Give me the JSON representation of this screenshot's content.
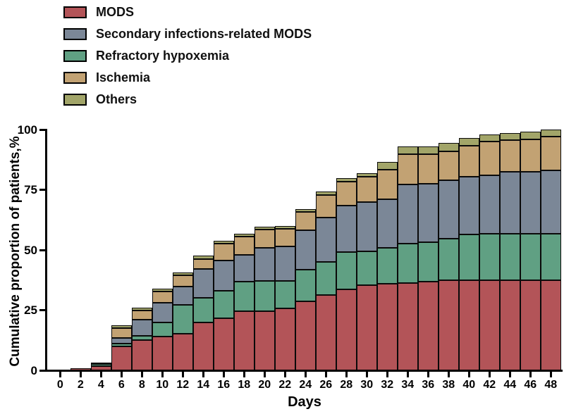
{
  "figure": {
    "y_axis_title": "Cumulative proportion of patients,%",
    "x_axis_title": "Days",
    "background_color": "#ffffff",
    "axis_color": "#000000",
    "bar_outline_color": "#0a0a0a"
  },
  "legend": {
    "items": [
      {
        "key": "mods",
        "label": "MODS",
        "color": "#b35458"
      },
      {
        "key": "secondary-infections-mods",
        "label": "Secondary infections-related MODS",
        "color": "#7b8797"
      },
      {
        "key": "refractory-hypoxemia",
        "label": "Refractory hypoxemia",
        "color": "#60a083"
      },
      {
        "key": "ischemia",
        "label": "Ischemia",
        "color": "#c2a273"
      },
      {
        "key": "others",
        "label": "Others",
        "color": "#a2a569"
      }
    ]
  },
  "chart_data": {
    "type": "bar",
    "subtype": "stacked_bar_cumulative_incidence",
    "title": "",
    "xlabel": "Days",
    "ylabel": "Cumulative proportion of patients,%",
    "ylim": [
      0,
      100
    ],
    "xlim_days": [
      0,
      48
    ],
    "grid": false,
    "legend_position": "top-left",
    "y_ticks": [
      0,
      25,
      50,
      75,
      100
    ],
    "x_tick_labels": [
      "0",
      "2",
      "4",
      "6",
      "8",
      "10",
      "12",
      "14",
      "16",
      "18",
      "20",
      "22",
      "24",
      "26",
      "28",
      "30",
      "32",
      "34",
      "36",
      "38",
      "40",
      "42",
      "44",
      "46",
      "48"
    ],
    "categories": [
      0,
      2,
      4,
      6,
      8,
      10,
      12,
      14,
      16,
      18,
      20,
      22,
      24,
      26,
      28,
      30,
      32,
      34,
      36,
      38,
      40,
      42,
      44,
      46,
      48
    ],
    "stack_order_bottom_to_top": [
      "MODS",
      "Refractory hypoxemia",
      "Secondary infections-related MODS",
      "Ischemia",
      "Others"
    ],
    "legend_order": [
      "MODS",
      "Secondary infections-related MODS",
      "Refractory hypoxemia",
      "Ischemia",
      "Others"
    ],
    "units": "percent of patients",
    "series": [
      {
        "name": "MODS",
        "key": "mods",
        "color": "#b35458",
        "values": [
          0,
          1,
          1.7,
          10,
          12.5,
          14,
          15.2,
          19.8,
          21.7,
          24.6,
          24.6,
          25.6,
          28.6,
          31.2,
          33.5,
          35.4,
          36.1,
          36.3,
          36.9,
          37.3,
          37.3,
          37.3,
          37.3,
          37.3,
          37.3
        ]
      },
      {
        "name": "Refractory hypoxemia",
        "key": "refractory-hypoxemia",
        "color": "#60a083",
        "values": [
          0,
          0,
          0.9,
          1.2,
          1.9,
          6,
          12.1,
          10.2,
          11.3,
          12.2,
          12.4,
          11.4,
          13.1,
          13.9,
          15.5,
          14.1,
          14.9,
          16.4,
          16.3,
          17.4,
          19.2,
          19.4,
          19.5,
          19.5,
          19.5
        ]
      },
      {
        "name": "Secondary infections-related MODS",
        "key": "secondary-infections-mods",
        "color": "#7b8797",
        "values": [
          0,
          0,
          0.4,
          2.2,
          6.8,
          8,
          7.4,
          12.2,
          12.6,
          11.3,
          14,
          14.5,
          16.6,
          18.5,
          19.3,
          20.3,
          20.1,
          24.4,
          24.3,
          24.3,
          23.9,
          24.3,
          25.7,
          25.7,
          26.2
        ]
      },
      {
        "name": "Ischemia",
        "key": "ischemia",
        "color": "#c2a273",
        "values": [
          0,
          0,
          0,
          4.2,
          3.8,
          4.7,
          4.9,
          4.1,
          7,
          7.5,
          7.5,
          7.2,
          7.5,
          9.1,
          10.2,
          10.7,
          12.2,
          12.6,
          12.2,
          12,
          12.8,
          14,
          13,
          13.5,
          14
        ]
      },
      {
        "name": "Others",
        "key": "others",
        "color": "#a2a569",
        "values": [
          0,
          0,
          0,
          1.2,
          1.1,
          1.2,
          1.1,
          1.3,
          1.3,
          1.2,
          1.2,
          1.2,
          1.3,
          1.7,
          1.4,
          1.5,
          3.2,
          3.3,
          3.3,
          3.5,
          3.3,
          3,
          3,
          3,
          3
        ]
      }
    ],
    "cumulative_totals": [
      0,
      1,
      3,
      18.8,
      26.1,
      33.9,
      40.7,
      47.6,
      53.9,
      56.8,
      59.7,
      59.9,
      67.1,
      74.4,
      79.9,
      82,
      86.5,
      93,
      93,
      94.5,
      96.5,
      98,
      98.5,
      99,
      100
    ]
  }
}
